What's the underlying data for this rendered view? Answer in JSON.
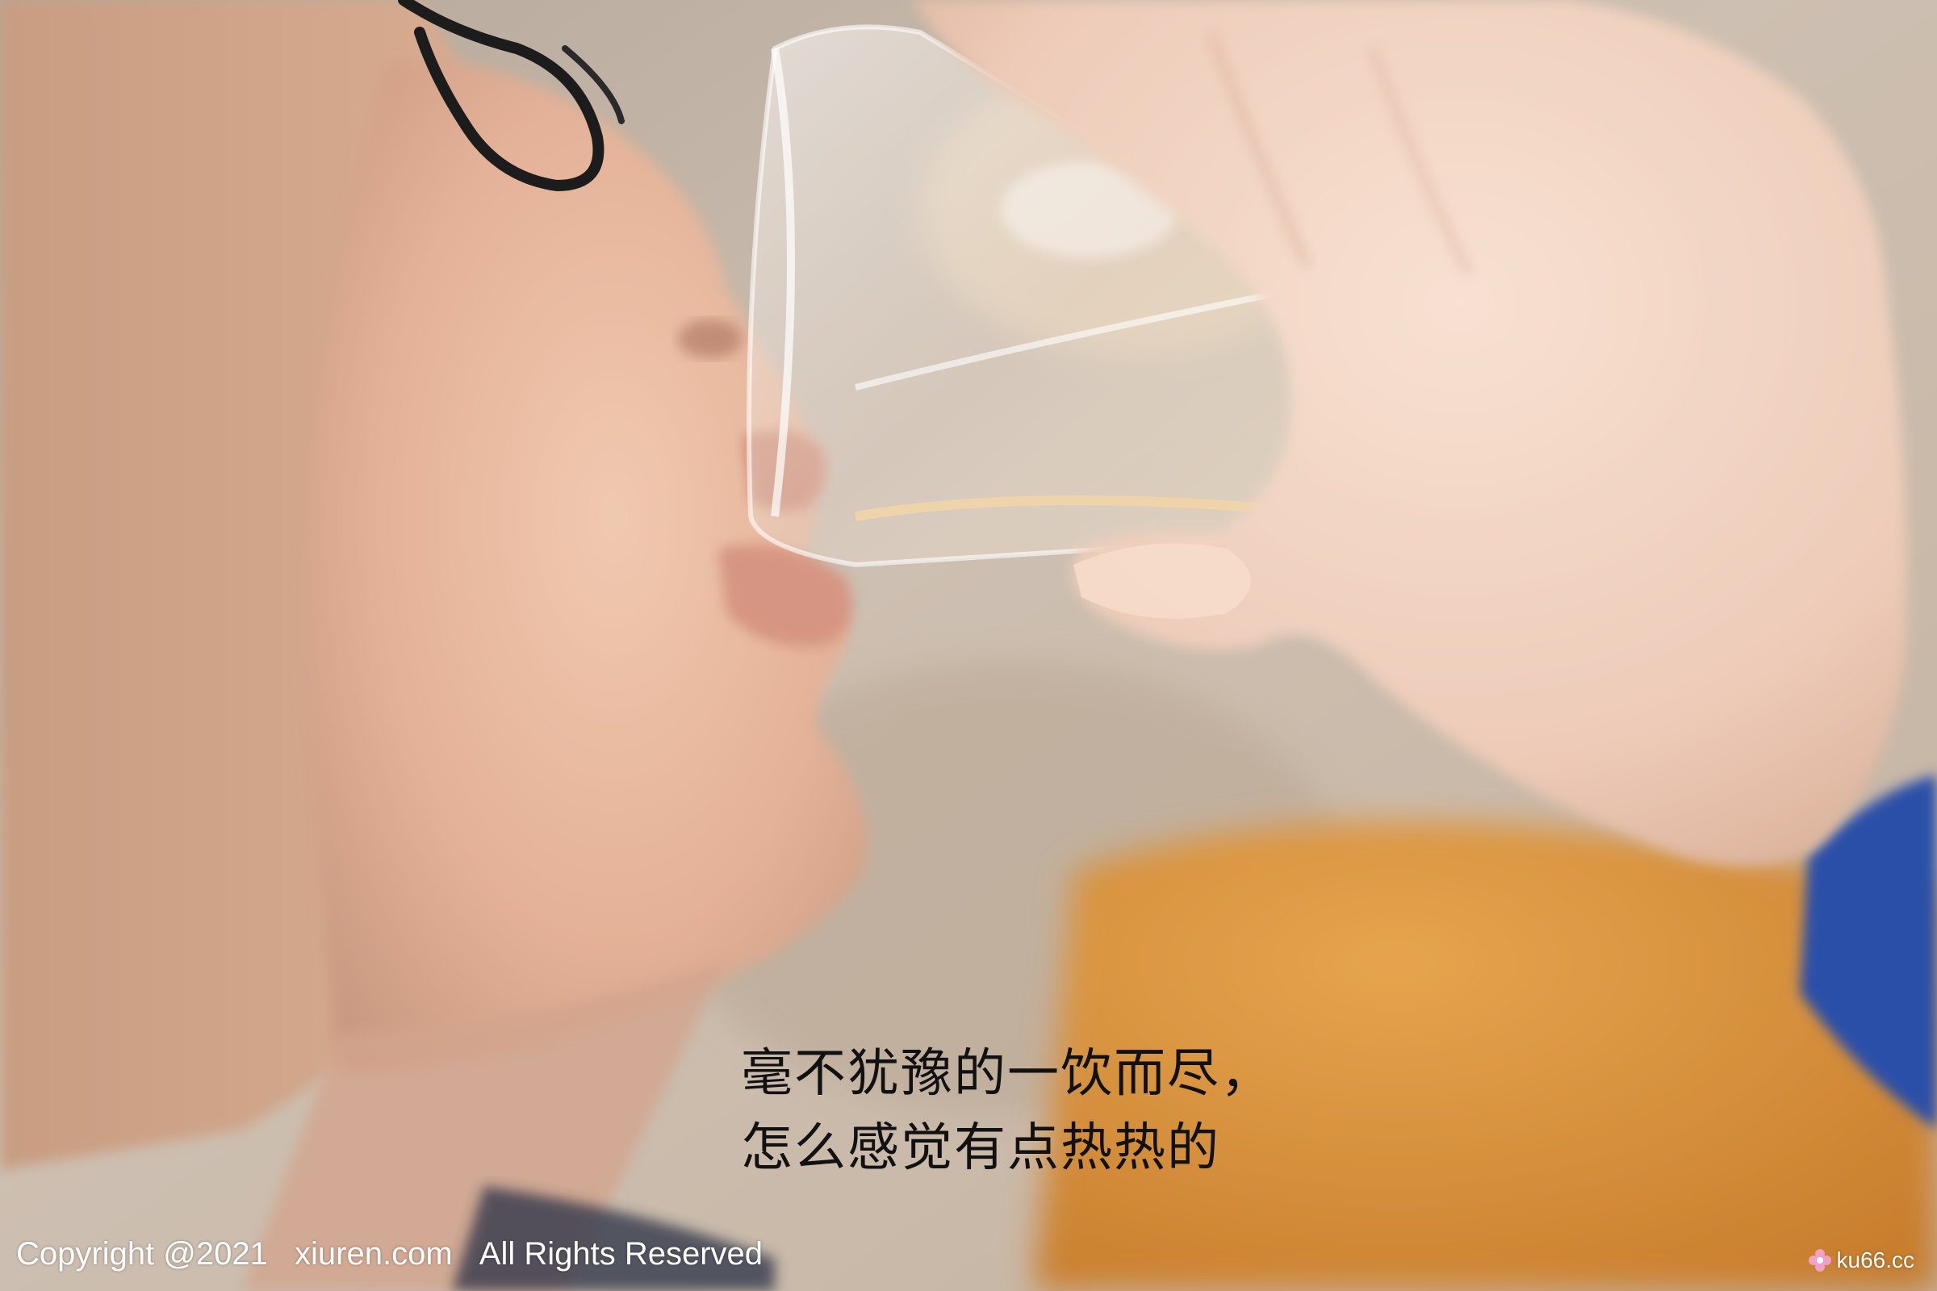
{
  "caption": {
    "line1": "毫不犹豫的一饮而尽，",
    "line2": "怎么感觉有点热热的"
  },
  "copyright": {
    "notice": "Copyright @2021",
    "site": "xiuren.com",
    "rights": "All Rights Reserved"
  },
  "watermark": {
    "text": "ku66.cc",
    "icon": "flower-logo-icon"
  },
  "colors": {
    "background": "#cbbcae",
    "caption_text": "#111111",
    "overlay_text": "#ffffff",
    "sleeve": "#2a4fa8",
    "table": "#d8953d"
  }
}
